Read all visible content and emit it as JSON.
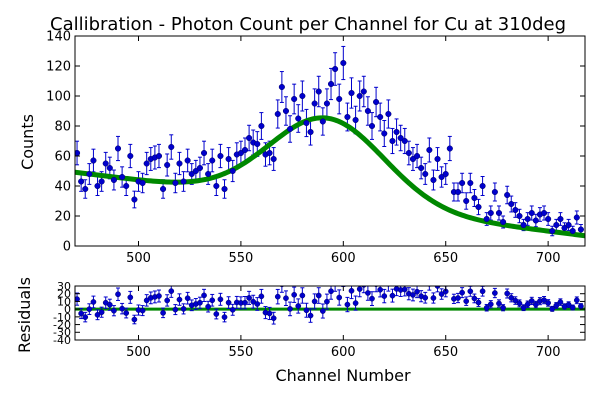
{
  "chart_data": [
    {
      "type": "scatter",
      "title": "Callibration - Photon Count per Channel for Cu at 310deg",
      "xlabel": "",
      "ylabel": "Counts",
      "xlim": [
        469,
        718
      ],
      "ylim": [
        0,
        140
      ],
      "x_ticks": [
        500,
        550,
        600,
        650,
        700
      ],
      "y_ticks": [
        0,
        20,
        40,
        60,
        80,
        100,
        120,
        140
      ],
      "grid": false,
      "series": [
        {
          "kind": "data-with-errorbars",
          "color": "#0000cc",
          "x": [
            470,
            472,
            474,
            476,
            478,
            480,
            482,
            484,
            486,
            488,
            490,
            492,
            494,
            496,
            498,
            500,
            502,
            504,
            506,
            508,
            510,
            512,
            514,
            516,
            518,
            520,
            522,
            524,
            526,
            528,
            530,
            532,
            534,
            536,
            538,
            540,
            542,
            544,
            546,
            548,
            550,
            552,
            554,
            556,
            558,
            560,
            562,
            564,
            566,
            568,
            570,
            572,
            574,
            576,
            578,
            580,
            582,
            584,
            586,
            588,
            590,
            592,
            594,
            596,
            598,
            600,
            602,
            604,
            606,
            608,
            610,
            612,
            614,
            616,
            618,
            620,
            622,
            624,
            626,
            628,
            630,
            632,
            634,
            636,
            638,
            640,
            642,
            644,
            646,
            648,
            650,
            652,
            654,
            656,
            658,
            660,
            662,
            664,
            666,
            668,
            670,
            672,
            674,
            676,
            678,
            680,
            682,
            684,
            686,
            688,
            690,
            692,
            694,
            696,
            698,
            700,
            702,
            704,
            706,
            708,
            710,
            712,
            714,
            716
          ],
          "y": [
            62,
            43,
            38,
            48,
            57,
            40,
            43,
            55,
            52,
            44,
            65,
            46,
            40,
            60,
            31,
            43,
            42,
            55,
            58,
            59,
            60,
            38,
            54,
            66,
            42,
            55,
            43,
            57,
            48,
            50,
            52,
            62,
            48,
            57,
            40,
            60,
            38,
            58,
            50,
            61,
            62,
            64,
            72,
            69,
            68,
            80,
            61,
            62,
            58,
            88,
            106,
            90,
            78,
            98,
            85,
            100,
            82,
            76,
            95,
            103,
            83,
            95,
            108,
            118,
            98,
            122,
            86,
            102,
            84,
            100,
            103,
            90,
            80,
            96,
            86,
            75,
            88,
            70,
            76,
            72,
            70,
            62,
            58,
            60,
            52,
            48,
            64,
            44,
            58,
            46,
            48,
            65,
            36,
            36,
            42,
            30,
            42,
            32,
            26,
            40,
            18,
            22,
            36,
            22,
            16,
            34,
            28,
            24,
            20,
            14,
            18,
            22,
            17,
            21,
            22,
            18,
            10,
            14,
            18,
            12,
            14,
            10,
            19,
            11
          ],
          "yerr_note": "sqrt(N) Poisson error bars"
        },
        {
          "kind": "fit-curve",
          "color": "#008800",
          "model": "gaussian-plus-linear-background",
          "params": {
            "amplitude": 57,
            "center": 592,
            "sigma": 28,
            "background_at_470": 49,
            "background_slope": -0.17
          }
        }
      ]
    },
    {
      "type": "scatter",
      "title": "",
      "xlabel": "Channel Number",
      "ylabel": "Residuals",
      "xlim": [
        469,
        718
      ],
      "ylim": [
        -40,
        30
      ],
      "x_ticks": [
        500,
        550,
        600,
        650,
        700
      ],
      "y_ticks": [
        -40,
        -30,
        -20,
        -10,
        0,
        10,
        20,
        30
      ],
      "grid": false,
      "series": [
        {
          "kind": "residuals-with-errorbars",
          "color": "#0000cc",
          "note": "residuals = data - fit, computed by the drawing script"
        },
        {
          "kind": "zero-line",
          "color": "#008800",
          "y": 0
        }
      ]
    }
  ]
}
